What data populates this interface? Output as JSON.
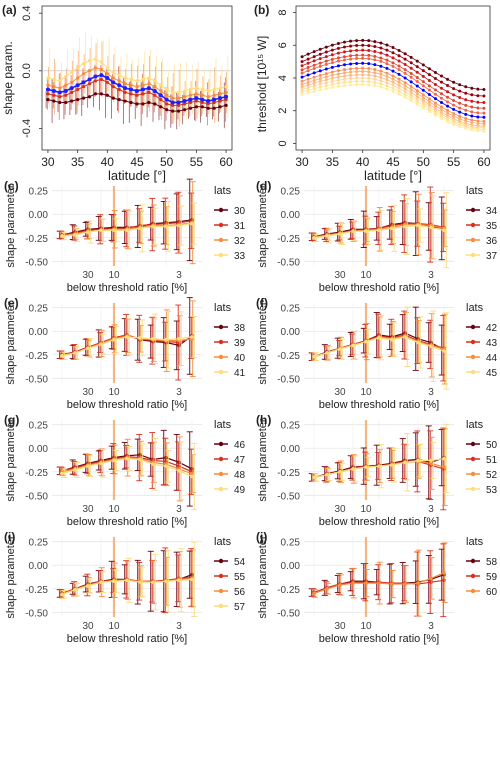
{
  "colors": {
    "dark_red": "#67000d",
    "red": "#d7301f",
    "orange": "#f78c3c",
    "yellow": "#fddc7a",
    "blue": "#1f1fff",
    "vline": "#f4a460"
  },
  "chart_data": [
    {
      "panel": "(a)",
      "type": "line",
      "ylabel": "shape param.",
      "xlabel": "latitude [°]",
      "xlim": [
        29,
        61
      ],
      "ylim": [
        -0.55,
        0.45
      ],
      "xticks": [
        30,
        35,
        40,
        45,
        50,
        55,
        60
      ],
      "yticks": [
        0.4,
        0.0,
        -0.4
      ],
      "ytick_labels": [
        "0.4",
        "0.0",
        "-0.4"
      ],
      "grid": false,
      "x": [
        30,
        31,
        32,
        33,
        34,
        35,
        36,
        37,
        38,
        39,
        40,
        41,
        42,
        43,
        44,
        45,
        46,
        47,
        48,
        49,
        50,
        51,
        52,
        53,
        54,
        55,
        56,
        57,
        58,
        59,
        60
      ],
      "highlight_series": {
        "name": "",
        "color": "blue",
        "values": [
          -0.13,
          -0.14,
          -0.15,
          -0.14,
          -0.12,
          -0.1,
          -0.08,
          -0.06,
          -0.04,
          -0.03,
          -0.05,
          -0.08,
          -0.1,
          -0.12,
          -0.13,
          -0.14,
          -0.13,
          -0.12,
          -0.14,
          -0.17,
          -0.2,
          -0.22,
          -0.22,
          -0.21,
          -0.2,
          -0.19,
          -0.2,
          -0.21,
          -0.2,
          -0.19,
          -0.18
        ]
      },
      "series": [
        {
          "color": "dark_red",
          "values": [
            -0.2,
            -0.21,
            -0.22,
            -0.22,
            -0.21,
            -0.2,
            -0.19,
            -0.18,
            -0.16,
            -0.16,
            -0.17,
            -0.19,
            -0.2,
            -0.21,
            -0.22,
            -0.23,
            -0.23,
            -0.22,
            -0.23,
            -0.25,
            -0.27,
            -0.28,
            -0.28,
            -0.27,
            -0.26,
            -0.25,
            -0.25,
            -0.26,
            -0.26,
            -0.25,
            -0.24
          ]
        },
        {
          "color": "red",
          "values": [
            -0.16,
            -0.17,
            -0.18,
            -0.17,
            -0.15,
            -0.13,
            -0.11,
            -0.09,
            -0.07,
            -0.06,
            -0.08,
            -0.11,
            -0.13,
            -0.15,
            -0.16,
            -0.17,
            -0.16,
            -0.15,
            -0.17,
            -0.2,
            -0.23,
            -0.24,
            -0.24,
            -0.23,
            -0.22,
            -0.21,
            -0.22,
            -0.23,
            -0.22,
            -0.21,
            -0.2
          ]
        },
        {
          "color": "orange",
          "values": [
            -0.1,
            -0.11,
            -0.12,
            -0.1,
            -0.08,
            -0.05,
            -0.02,
            0.0,
            0.02,
            0.01,
            -0.02,
            -0.05,
            -0.07,
            -0.09,
            -0.1,
            -0.11,
            -0.1,
            -0.09,
            -0.11,
            -0.14,
            -0.17,
            -0.19,
            -0.19,
            -0.18,
            -0.17,
            -0.16,
            -0.17,
            -0.18,
            -0.17,
            -0.16,
            -0.15
          ]
        },
        {
          "color": "yellow",
          "values": [
            -0.05,
            -0.06,
            -0.07,
            -0.04,
            -0.01,
            0.02,
            0.05,
            0.07,
            0.08,
            0.06,
            0.02,
            -0.01,
            -0.03,
            -0.05,
            -0.06,
            -0.07,
            -0.06,
            -0.05,
            -0.07,
            -0.1,
            -0.13,
            -0.15,
            -0.15,
            -0.14,
            -0.13,
            -0.12,
            -0.13,
            -0.14,
            -0.13,
            -0.12,
            -0.11
          ]
        }
      ]
    },
    {
      "panel": "(b)",
      "type": "line",
      "ylabel": "threshold [10¹⁵ W]",
      "xlabel": "latitude [°]",
      "xlim": [
        29,
        61
      ],
      "ylim": [
        -0.4,
        8.4
      ],
      "xticks": [
        30,
        35,
        40,
        45,
        50,
        55,
        60
      ],
      "yticks": [
        0,
        2,
        4,
        6,
        8
      ],
      "grid": false,
      "x": [
        30,
        31,
        32,
        33,
        34,
        35,
        36,
        37,
        38,
        39,
        40,
        41,
        42,
        43,
        44,
        45,
        46,
        47,
        48,
        49,
        50,
        51,
        52,
        53,
        54,
        55,
        56,
        57,
        58,
        59,
        60
      ],
      "series_peak": [
        6.3,
        6.0,
        5.7,
        5.4,
        5.2,
        4.9,
        4.6,
        4.4,
        4.2,
        4.0,
        3.8,
        3.6
      ],
      "series_start": [
        5.3,
        5.0,
        4.75,
        4.5,
        4.3,
        4.05,
        3.8,
        3.6,
        3.45,
        3.3,
        3.15,
        3.0
      ],
      "series_end": [
        3.3,
        2.9,
        2.5,
        2.15,
        1.85,
        1.6,
        1.35,
        1.2,
        1.05,
        0.95,
        0.85,
        0.75
      ],
      "series_colors": [
        "#67000d",
        "#99000d",
        "#cb181d",
        "#e34a33",
        "#ef6548",
        "#0000ff",
        "#fc8d59",
        "#fdae6b",
        "#fdbb84",
        "#fdd49e",
        "#fee391",
        "#ffeda0"
      ]
    }
  ],
  "facets": {
    "ylabel": "shape parameter",
    "xlabel": "below threshold ratio [%]",
    "xticks": [
      "30",
      "10",
      "3"
    ],
    "yticks": [
      "0.25",
      "0.00",
      "-0.25",
      "-0.50"
    ],
    "legend_title": "lats",
    "panels": [
      {
        "tag": "(c)",
        "lats": [
          "30",
          "31",
          "32",
          "33"
        ],
        "values": [
          [
            -0.22,
            -0.19,
            -0.16,
            -0.15,
            -0.14,
            -0.14,
            -0.13,
            -0.1,
            -0.09,
            -0.08,
            -0.06
          ],
          [
            -0.22,
            -0.2,
            -0.17,
            -0.16,
            -0.15,
            -0.15,
            -0.12,
            -0.11,
            -0.1,
            -0.09,
            -0.07
          ],
          [
            -0.23,
            -0.21,
            -0.18,
            -0.17,
            -0.16,
            -0.16,
            -0.14,
            -0.12,
            -0.12,
            -0.11,
            -0.09
          ],
          [
            -0.23,
            -0.22,
            -0.19,
            -0.17,
            -0.17,
            -0.17,
            -0.15,
            -0.13,
            -0.13,
            -0.12,
            -0.1
          ]
        ]
      },
      {
        "tag": "(d)",
        "lats": [
          "34",
          "35",
          "36",
          "37"
        ],
        "values": [
          [
            -0.24,
            -0.21,
            -0.19,
            -0.16,
            -0.16,
            -0.15,
            -0.11,
            -0.09,
            -0.1,
            -0.13,
            -0.15
          ],
          [
            -0.24,
            -0.22,
            -0.2,
            -0.17,
            -0.17,
            -0.15,
            -0.12,
            -0.1,
            -0.1,
            -0.11,
            -0.14
          ],
          [
            -0.25,
            -0.22,
            -0.2,
            -0.18,
            -0.17,
            -0.16,
            -0.14,
            -0.11,
            -0.11,
            -0.12,
            -0.15
          ],
          [
            -0.25,
            -0.23,
            -0.21,
            -0.18,
            -0.18,
            -0.17,
            -0.15,
            -0.13,
            -0.12,
            -0.14,
            -0.17
          ]
        ]
      },
      {
        "tag": "(e)",
        "lats": [
          "38",
          "39",
          "40",
          "41"
        ],
        "values": [
          [
            -0.25,
            -0.22,
            -0.17,
            -0.13,
            -0.07,
            -0.04,
            -0.09,
            -0.11,
            -0.12,
            -0.15,
            -0.05
          ],
          [
            -0.25,
            -0.22,
            -0.17,
            -0.12,
            -0.07,
            -0.04,
            -0.08,
            -0.1,
            -0.11,
            -0.12,
            -0.07
          ],
          [
            -0.26,
            -0.23,
            -0.18,
            -0.13,
            -0.08,
            -0.05,
            -0.08,
            -0.09,
            -0.1,
            -0.1,
            -0.08
          ],
          [
            -0.26,
            -0.23,
            -0.18,
            -0.14,
            -0.09,
            -0.06,
            -0.07,
            -0.08,
            -0.09,
            -0.08,
            -0.06
          ]
        ]
      },
      {
        "tag": "(f)",
        "lats": [
          "42",
          "43",
          "44",
          "45"
        ],
        "values": [
          [
            -0.27,
            -0.22,
            -0.18,
            -0.14,
            -0.1,
            -0.04,
            -0.06,
            -0.02,
            -0.08,
            -0.12,
            -0.2
          ],
          [
            -0.27,
            -0.23,
            -0.18,
            -0.14,
            -0.1,
            -0.05,
            -0.07,
            -0.04,
            -0.1,
            -0.14,
            -0.18
          ],
          [
            -0.27,
            -0.23,
            -0.18,
            -0.15,
            -0.11,
            -0.06,
            -0.08,
            -0.05,
            -0.11,
            -0.15,
            -0.19
          ],
          [
            -0.27,
            -0.23,
            -0.19,
            -0.15,
            -0.11,
            -0.07,
            -0.09,
            -0.06,
            -0.12,
            -0.16,
            -0.21
          ]
        ]
      },
      {
        "tag": "(g)",
        "lats": [
          "46",
          "47",
          "48",
          "49"
        ],
        "values": [
          [
            -0.24,
            -0.2,
            -0.16,
            -0.13,
            -0.1,
            -0.08,
            -0.07,
            -0.12,
            -0.1,
            -0.15,
            -0.22
          ],
          [
            -0.24,
            -0.21,
            -0.17,
            -0.14,
            -0.11,
            -0.09,
            -0.1,
            -0.13,
            -0.14,
            -0.19,
            -0.25
          ],
          [
            -0.25,
            -0.22,
            -0.18,
            -0.15,
            -0.12,
            -0.1,
            -0.11,
            -0.15,
            -0.17,
            -0.22,
            -0.27
          ],
          [
            -0.27,
            -0.23,
            -0.19,
            -0.16,
            -0.13,
            -0.11,
            -0.12,
            -0.17,
            -0.19,
            -0.24,
            -0.3
          ]
        ]
      },
      {
        "tag": "(h)",
        "lats": [
          "50",
          "51",
          "52",
          "53"
        ],
        "values": [
          [
            -0.31,
            -0.27,
            -0.24,
            -0.2,
            -0.19,
            -0.18,
            -0.16,
            -0.13,
            -0.12,
            -0.15,
            -0.1
          ],
          [
            -0.31,
            -0.28,
            -0.25,
            -0.21,
            -0.19,
            -0.19,
            -0.17,
            -0.14,
            -0.14,
            -0.18,
            -0.22
          ],
          [
            -0.31,
            -0.28,
            -0.25,
            -0.22,
            -0.2,
            -0.19,
            -0.17,
            -0.15,
            -0.14,
            -0.16,
            -0.2
          ],
          [
            -0.31,
            -0.28,
            -0.25,
            -0.22,
            -0.2,
            -0.19,
            -0.18,
            -0.15,
            -0.13,
            -0.13,
            -0.11
          ]
        ]
      },
      {
        "tag": "(i)",
        "lats": [
          "54",
          "55",
          "56",
          "57"
        ],
        "values": [
          [
            -0.3,
            -0.25,
            -0.2,
            -0.17,
            -0.15,
            -0.15,
            -0.18,
            -0.17,
            -0.17,
            -0.15,
            -0.1
          ],
          [
            -0.3,
            -0.25,
            -0.21,
            -0.17,
            -0.16,
            -0.15,
            -0.17,
            -0.17,
            -0.16,
            -0.14,
            -0.13
          ],
          [
            -0.31,
            -0.26,
            -0.21,
            -0.18,
            -0.16,
            -0.16,
            -0.17,
            -0.18,
            -0.17,
            -0.15,
            -0.14
          ],
          [
            -0.31,
            -0.26,
            -0.22,
            -0.18,
            -0.17,
            -0.16,
            -0.18,
            -0.18,
            -0.17,
            -0.16,
            -0.15
          ]
        ]
      },
      {
        "tag": "(j)",
        "lats": [
          "58",
          "59",
          "60"
        ],
        "values": [
          [
            -0.29,
            -0.24,
            -0.2,
            -0.17,
            -0.17,
            -0.18,
            -0.2,
            -0.19,
            -0.18,
            -0.15,
            -0.1
          ],
          [
            -0.29,
            -0.24,
            -0.2,
            -0.18,
            -0.18,
            -0.18,
            -0.19,
            -0.19,
            -0.2,
            -0.18,
            -0.16
          ],
          [
            -0.3,
            -0.25,
            -0.21,
            -0.19,
            -0.19,
            -0.19,
            -0.2,
            -0.2,
            -0.19,
            -0.14,
            -0.08
          ]
        ]
      }
    ]
  }
}
